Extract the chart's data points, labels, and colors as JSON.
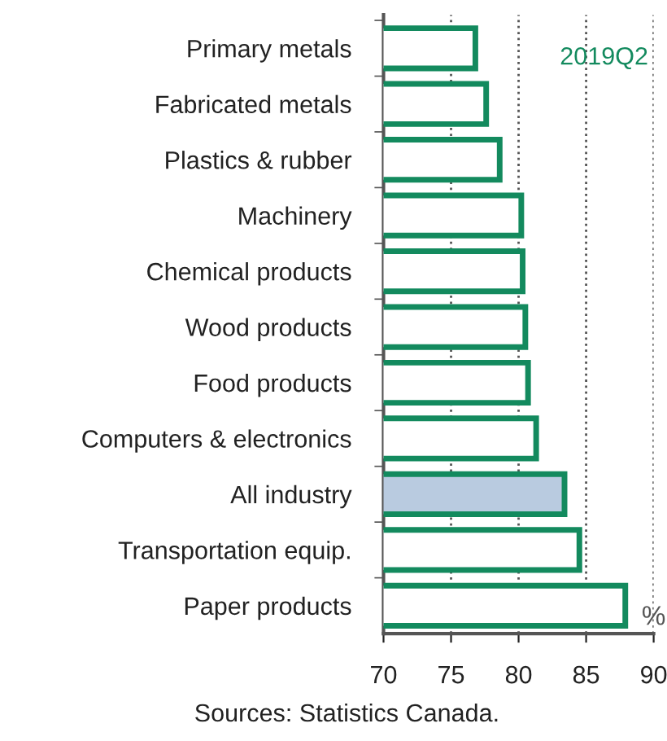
{
  "chart_data": {
    "type": "bar",
    "orientation": "horizontal",
    "categories": [
      "Primary metals",
      "Fabricated metals",
      "Plastics & rubber",
      "Machinery",
      "Chemical products",
      "Wood products",
      "Food products",
      "Computers & electronics",
      "All industry",
      "Transportation equip.",
      "Paper products"
    ],
    "values": [
      76.8,
      77.6,
      78.6,
      80.2,
      80.3,
      80.5,
      80.7,
      81.3,
      83.4,
      84.5,
      87.9
    ],
    "colors": [
      "#ffffff",
      "#ffffff",
      "#ffffff",
      "#ffffff",
      "#ffffff",
      "#ffffff",
      "#ffffff",
      "#ffffff",
      "#b9cbe0",
      "#ffffff",
      "#ffffff"
    ],
    "color": "#138a5e",
    "xlim": [
      70,
      90
    ],
    "xticks": [
      70,
      75,
      80,
      85,
      90
    ],
    "grid": "x",
    "annotations": [
      "2019Q2",
      "%",
      "Sources: Statistics Canada."
    ]
  }
}
